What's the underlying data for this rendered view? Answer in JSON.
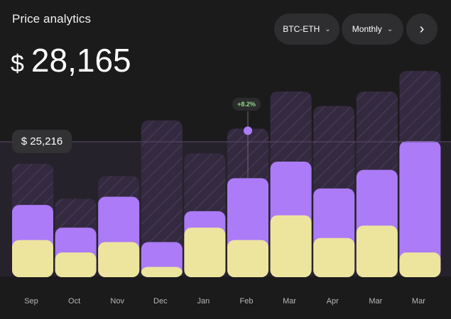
{
  "header": {
    "title": "Price analytics",
    "price_currency": "$",
    "price_value": "28,165",
    "pair_label": "BTC-ETH",
    "period_label": "Monthly",
    "next_icon": "chevron-right-icon"
  },
  "chart_data": {
    "type": "bar",
    "categories": [
      "Sep",
      "Oct",
      "Nov",
      "Dec",
      "Jan",
      "Feb",
      "Mar",
      "Apr",
      "Mar",
      "Mar"
    ],
    "series": [
      {
        "values": [
          18,
          12,
          17,
          5,
          24,
          18,
          30,
          19,
          25,
          12
        ]
      },
      {
        "values": [
          35,
          24,
          39,
          17,
          32,
          48,
          56,
          43,
          52,
          66
        ]
      },
      {
        "values": [
          55,
          38,
          49,
          76,
          60,
          72,
          90,
          83,
          90,
          100
        ]
      }
    ],
    "colors": [
      "#ede59d",
      "#ac7bf7",
      "#342a3f"
    ],
    "reference_label": "$ 25,216",
    "reference_value": 71,
    "annotation": {
      "category_index": 5,
      "text": "+8.2%"
    },
    "ylim": [
      0,
      100
    ],
    "grid": false
  }
}
